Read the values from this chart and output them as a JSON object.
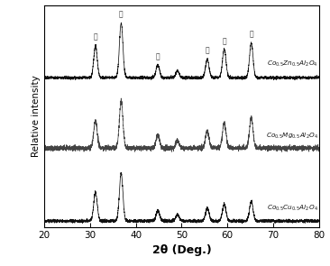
{
  "xlabel": "2θ (Deg.)",
  "ylabel": "Relative intensity",
  "xlim": [
    20,
    80
  ],
  "x_ticks": [
    20,
    30,
    40,
    50,
    60,
    70,
    80
  ],
  "labels": [
    "Co$_{0.5}$Zn$_{0.5}$Al$_2$O$_4$",
    "Co$_{0.5}$Mg$_{0.5}$Al$_2$O$_4$",
    "Co$_{0.5}$Cu$_{0.5}$Al$_2$O$_4$"
  ],
  "offsets": [
    2.2,
    1.1,
    0.0
  ],
  "background_color": "#f0f0f0",
  "noise_amplitude": 0.025
}
